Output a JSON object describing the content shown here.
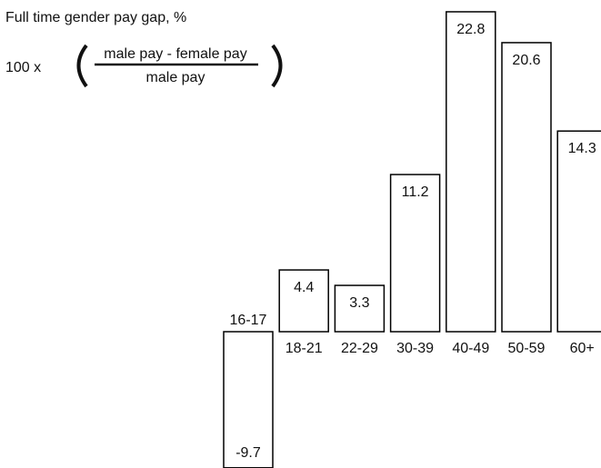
{
  "chart_data": {
    "type": "bar",
    "title": "Full time gender pay gap, %",
    "formula": {
      "prefix": "100 x",
      "numerator": "male pay - female pay",
      "denominator": "male pay"
    },
    "categories": [
      "16-17",
      "18-21",
      "22-29",
      "30-39",
      "40-49",
      "50-59",
      "60+"
    ],
    "values": [
      -9.7,
      4.4,
      3.3,
      11.2,
      22.8,
      20.6,
      14.3
    ],
    "color": "#ffffff",
    "edge_color": "#000000"
  }
}
